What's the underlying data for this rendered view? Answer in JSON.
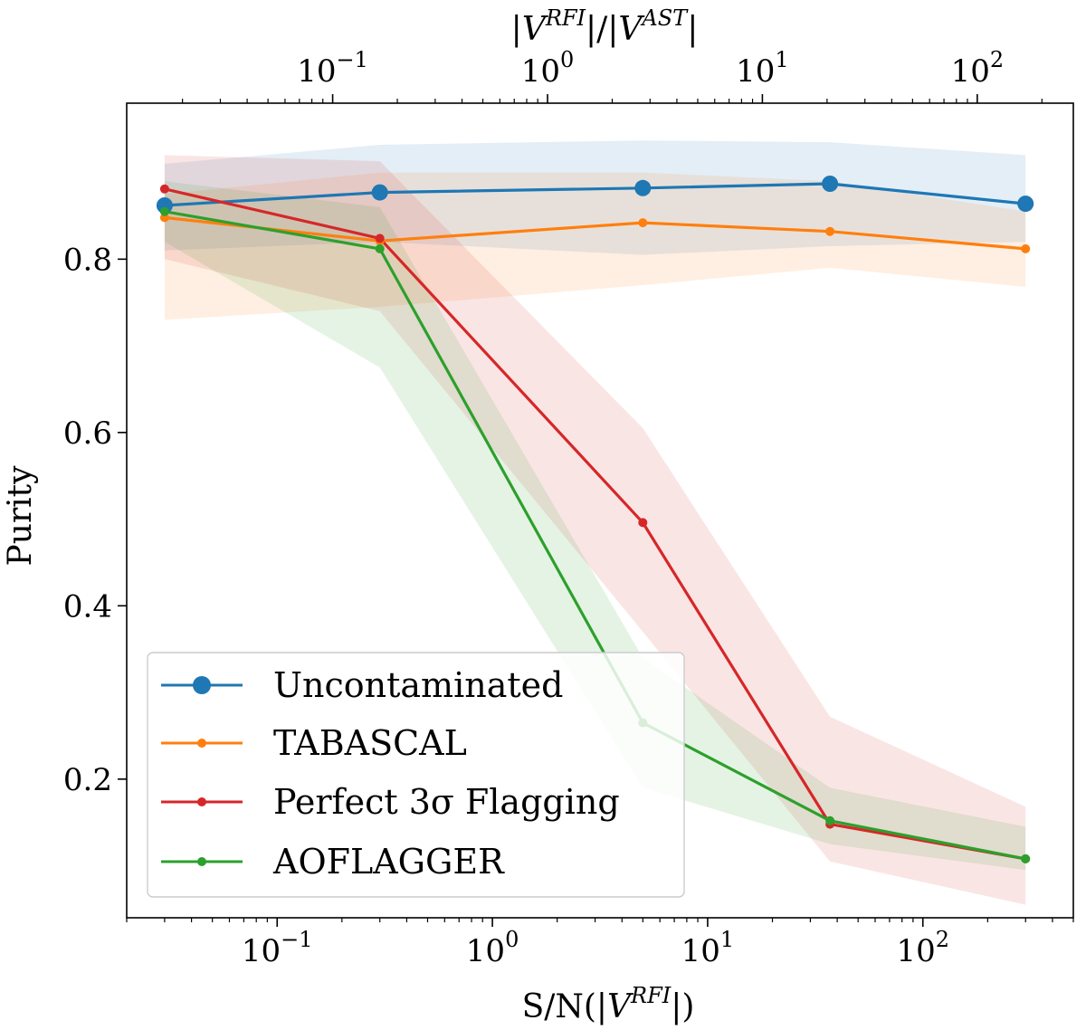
{
  "chart_data": {
    "type": "line",
    "xscale": "log",
    "ylabel": "Purity",
    "xlabel_bottom": {
      "main": "S/N(|",
      "var": "V",
      "sup": "RFI",
      "end": "|)"
    },
    "xlabel_top": {
      "a": "|",
      "v1": "V",
      "s1": "RFI",
      "mid": "|/|",
      "v2": "V",
      "s2": "AST",
      "end": "|"
    },
    "xlim": [
      0.02,
      500
    ],
    "ylim": [
      0.04,
      0.98
    ],
    "top_xlim": [
      0.011,
      280
    ],
    "x": [
      0.03,
      0.3,
      5.0,
      37.0,
      300.0
    ],
    "bottom_ticks": [
      {
        "value": 0.1,
        "base": "10",
        "exp": "−1"
      },
      {
        "value": 1,
        "base": "10",
        "exp": "0"
      },
      {
        "value": 10,
        "base": "10",
        "exp": "1"
      },
      {
        "value": 100,
        "base": "10",
        "exp": "2"
      }
    ],
    "top_ticks": [
      {
        "value": 0.1,
        "base": "10",
        "exp": "−1"
      },
      {
        "value": 1,
        "base": "10",
        "exp": "0"
      },
      {
        "value": 10,
        "base": "10",
        "exp": "1"
      },
      {
        "value": 100,
        "base": "10",
        "exp": "2"
      }
    ],
    "y_ticks": [
      {
        "value": 0.2,
        "label": "0.2"
      },
      {
        "value": 0.4,
        "label": "0.4"
      },
      {
        "value": 0.6,
        "label": "0.6"
      },
      {
        "value": 0.8,
        "label": "0.8"
      }
    ],
    "series": [
      {
        "name": "Uncontaminated",
        "color": "#1f77b4",
        "marker": "large",
        "values": [
          0.862,
          0.877,
          0.882,
          0.887,
          0.864
        ],
        "lower": [
          0.81,
          0.82,
          0.805,
          0.815,
          0.82
        ],
        "upper": [
          0.91,
          0.932,
          0.937,
          0.935,
          0.92
        ]
      },
      {
        "name": "TABASCAL",
        "color": "#ff7f0e",
        "marker": "small",
        "values": [
          0.848,
          0.821,
          0.842,
          0.832,
          0.812
        ],
        "lower": [
          0.73,
          0.745,
          0.77,
          0.79,
          0.768
        ],
        "upper": [
          0.875,
          0.9,
          0.9,
          0.89,
          0.855
        ]
      },
      {
        "name": "Perfect 3σ Flagging",
        "color": "#d62728",
        "marker": "small",
        "values": [
          0.881,
          0.824,
          0.496,
          0.148,
          0.108
        ],
        "lower": [
          0.8,
          0.74,
          0.37,
          0.105,
          0.055
        ],
        "upper": [
          0.92,
          0.913,
          0.605,
          0.272,
          0.168
        ]
      },
      {
        "name": "AOFLAGGER",
        "color": "#2ca02c",
        "marker": "small",
        "values": [
          0.855,
          0.812,
          0.265,
          0.152,
          0.108
        ],
        "lower": [
          0.82,
          0.675,
          0.19,
          0.125,
          0.095
        ],
        "upper": [
          0.89,
          0.86,
          0.34,
          0.19,
          0.145
        ]
      }
    ],
    "legend_position": "lower-left"
  }
}
